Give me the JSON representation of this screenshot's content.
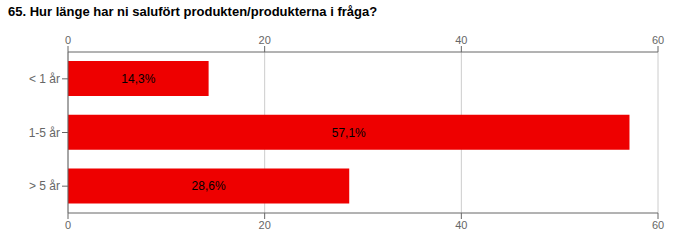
{
  "chart_data": {
    "type": "bar",
    "title": "65. Hur länge har ni salufört produkten/produkterna i fråga?",
    "orientation": "horizontal",
    "categories": [
      "< 1 år",
      "1-5 år",
      "> 5 år"
    ],
    "values": [
      14.3,
      57.1,
      28.6
    ],
    "value_labels": [
      "14,3%",
      "57,1%",
      "28,6%"
    ],
    "data_labels": true,
    "color": "#ee0000",
    "xlim": [
      0,
      60
    ],
    "xticks": [
      0,
      20,
      40,
      60
    ],
    "grid": true
  }
}
